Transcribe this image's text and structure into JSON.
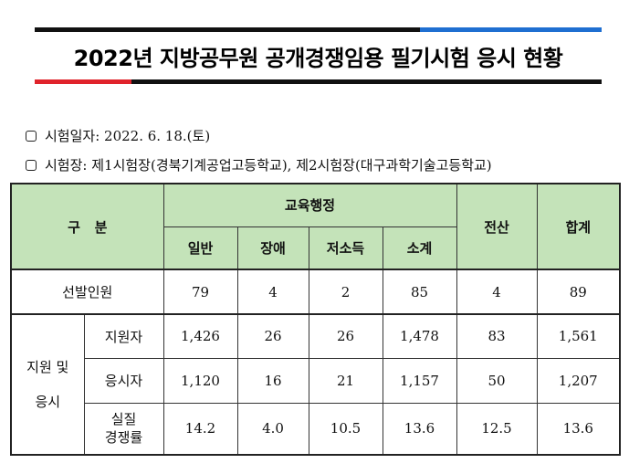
{
  "title": "2022년 지방공무원 공개경쟁임용 필기시험 응시 현황",
  "colors": {
    "accent_blue": "#1f6fd1",
    "accent_red": "#e0232b",
    "dark": "#111111",
    "header_bg": "#c4e3b9"
  },
  "info": [
    {
      "label": "시험일자: 2022. 6. 18.(토)"
    },
    {
      "label": "시험장: 제1시험장(경북기계공업고등학교), 제2시험장(대구과학기술고등학교)"
    }
  ],
  "table": {
    "header": {
      "gubun": "구   분",
      "group": "교육행정",
      "sub": [
        "일반",
        "장애",
        "저소득",
        "소계"
      ],
      "computing": "전산",
      "total": "합계"
    },
    "selection": {
      "label": "선발인원",
      "values": [
        "79",
        "4",
        "2",
        "85",
        "4",
        "89"
      ]
    },
    "apply_group_label_1": "지원 및",
    "apply_group_label_2": "응시",
    "rows": [
      {
        "label": "지원자",
        "values": [
          "1,426",
          "26",
          "26",
          "1,478",
          "83",
          "1,561"
        ]
      },
      {
        "label": "응시자",
        "values": [
          "1,120",
          "16",
          "21",
          "1,157",
          "50",
          "1,207"
        ]
      },
      {
        "label_1": "실질",
        "label_2": "경쟁률",
        "values": [
          "14.2",
          "4.0",
          "10.5",
          "13.6",
          "12.5",
          "13.6"
        ]
      }
    ]
  }
}
